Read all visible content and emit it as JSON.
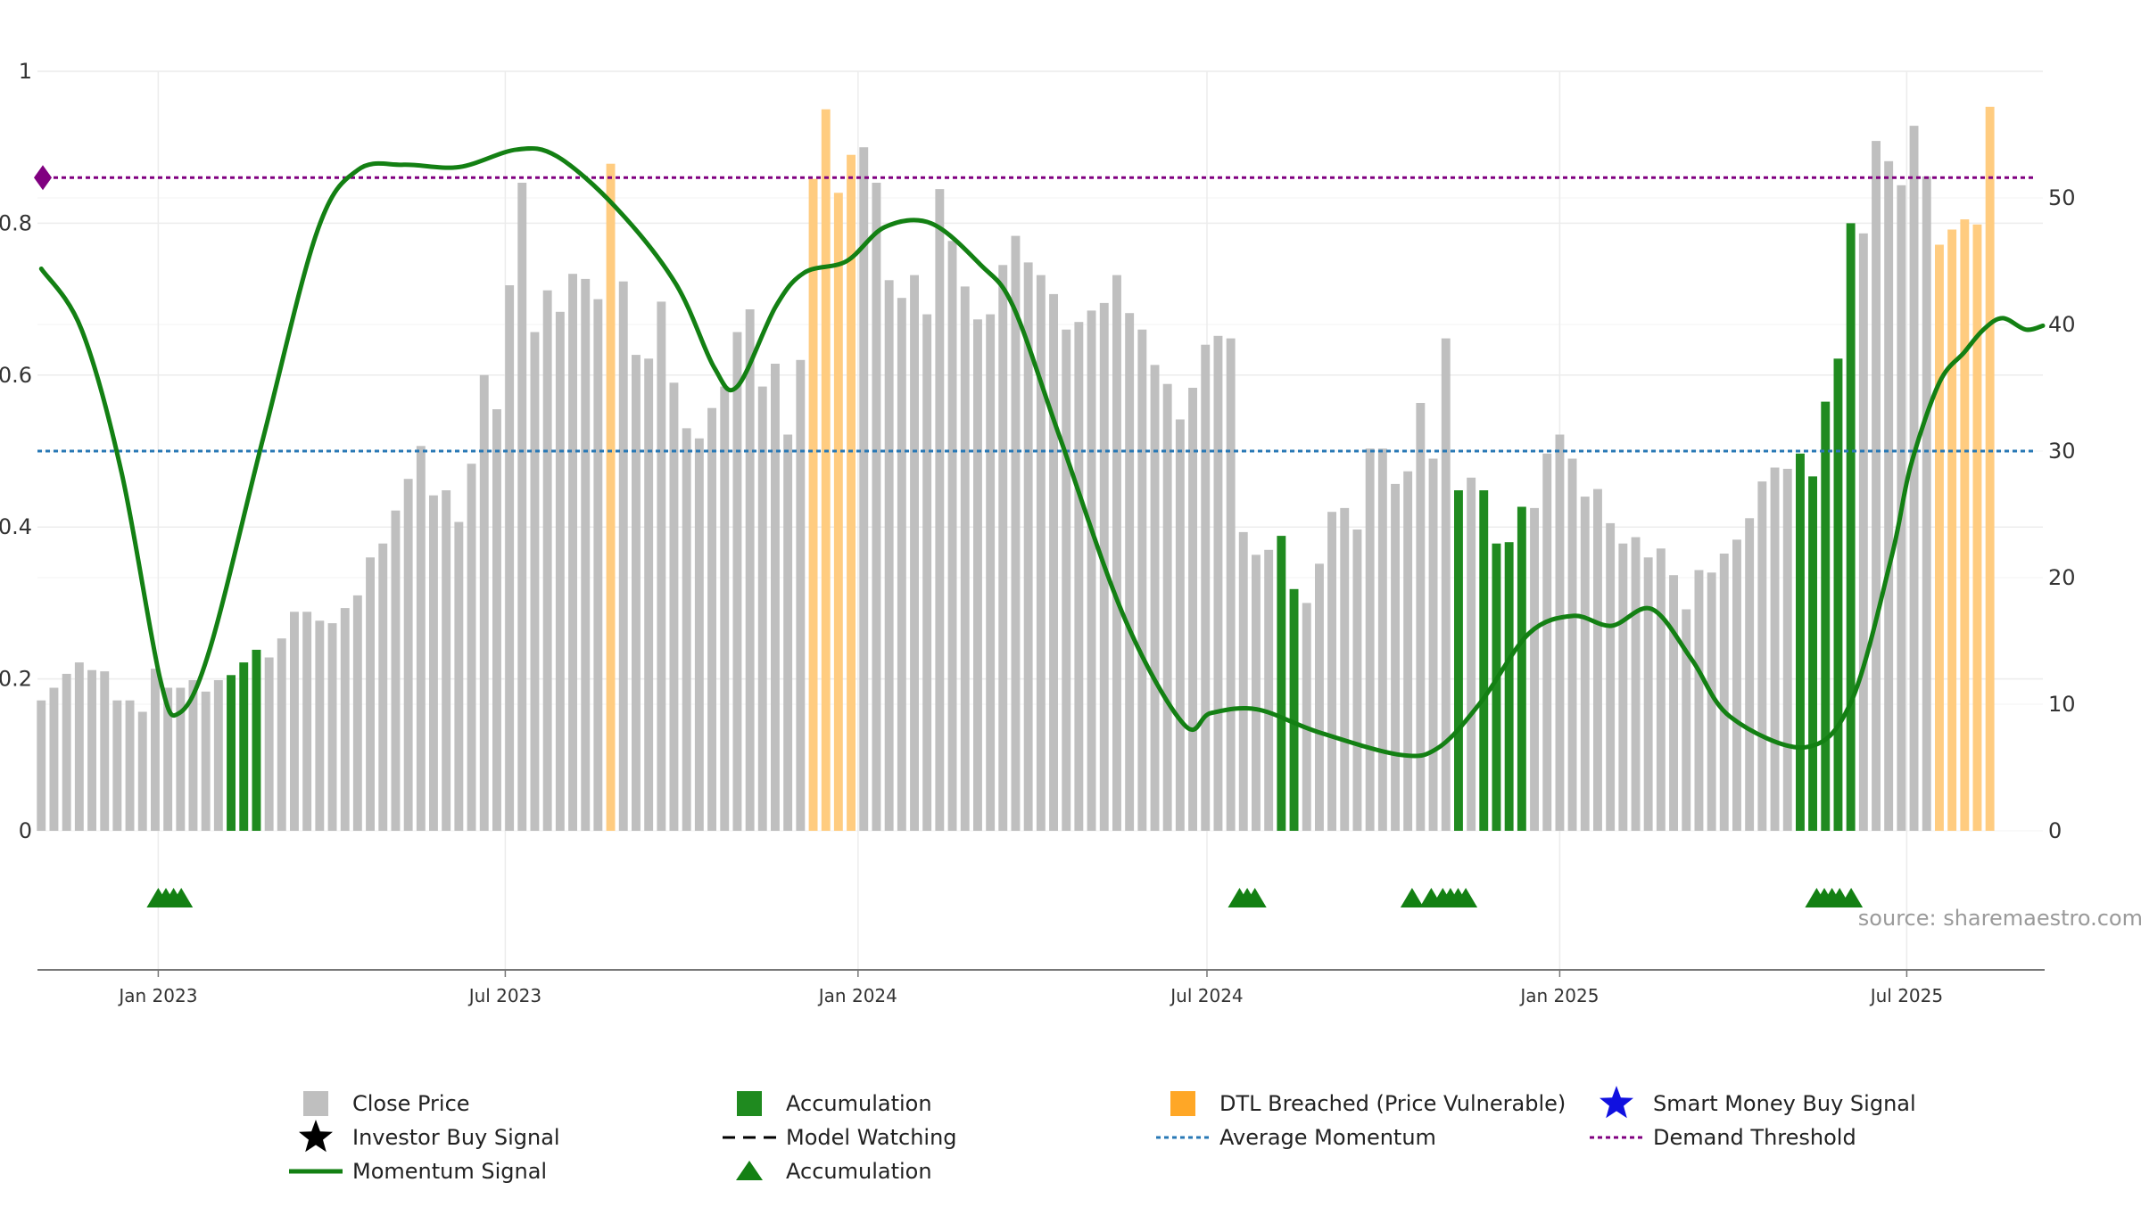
{
  "chart_data": {
    "type": "bar",
    "source_text": "source: sharemaestro.com",
    "left_axis": {
      "ylim": [
        0,
        1
      ],
      "ticks": [
        0,
        0.2,
        0.4,
        0.6,
        0.8,
        1
      ],
      "tick_labels": [
        "0",
        "0.2",
        "0.4",
        "0.6",
        "0.8",
        "1"
      ]
    },
    "right_axis": {
      "ylim": [
        0,
        60
      ],
      "ticks": [
        0,
        10,
        20,
        30,
        40,
        50
      ],
      "tick_labels": [
        "0",
        "10",
        "20",
        "30",
        "40",
        "50"
      ]
    },
    "x_axis": {
      "range": [
        "2022-10-30",
        "2025-09-10"
      ],
      "tick_dates": [
        "2023-01-01",
        "2023-07-01",
        "2024-01-01",
        "2024-07-01",
        "2025-01-01",
        "2025-07-01"
      ],
      "tick_labels": [
        "Jan 2023",
        "Jul 2023",
        "Jan 2024",
        "Jul 2024",
        "Jan 2025",
        "Jul 2025"
      ]
    },
    "grid": true,
    "bars": {
      "start_date": "2022-11-01",
      "interval_days": 6.6,
      "values": [
        10.3,
        11.3,
        12.4,
        13.3,
        12.7,
        12.6,
        10.3,
        10.3,
        9.4,
        12.8,
        11.3,
        11.3,
        11.9,
        11.0,
        11.9,
        12.3,
        13.3,
        14.3,
        13.7,
        15.2,
        17.3,
        17.3,
        16.6,
        16.4,
        17.6,
        18.6,
        21.6,
        22.7,
        25.3,
        27.8,
        30.4,
        26.5,
        26.9,
        24.4,
        29.0,
        36.0,
        33.3,
        43.1,
        51.2,
        39.4,
        42.7,
        41.0,
        44.0,
        43.6,
        42.0,
        52.7,
        43.4,
        37.6,
        37.3,
        41.8,
        35.4,
        31.8,
        31.0,
        33.4,
        35.1,
        39.4,
        41.2,
        35.1,
        36.9,
        31.3,
        37.2,
        51.5,
        57.0,
        50.4,
        53.4,
        54.0,
        51.2,
        43.5,
        42.1,
        43.9,
        40.8,
        50.7,
        46.6,
        43.0,
        40.4,
        40.8,
        44.7,
        47.0,
        44.9,
        43.9,
        42.4,
        39.6,
        40.2,
        41.1,
        41.7,
        43.9,
        40.9,
        39.6,
        36.8,
        35.3,
        32.5,
        35.0,
        38.4,
        39.1,
        38.9,
        23.6,
        21.8,
        22.2,
        23.3,
        19.1,
        18.0,
        21.1,
        25.2,
        25.5,
        23.8,
        30.2,
        30.2,
        27.4,
        28.4,
        33.8,
        29.4,
        38.9,
        26.9,
        27.9,
        26.9,
        22.7,
        22.8,
        25.6,
        25.5,
        29.8,
        31.3,
        29.4,
        26.4,
        27.0,
        24.3,
        22.7,
        23.2,
        21.6,
        22.3,
        20.2,
        17.5,
        20.6,
        20.4,
        21.9,
        23.0,
        24.7,
        27.6,
        28.7,
        28.6,
        29.8,
        28.0,
        33.9,
        37.3,
        48.0,
        47.2,
        54.5,
        52.9,
        51.0,
        55.7,
        51.7,
        46.3,
        47.5,
        48.3,
        47.9,
        57.2
      ],
      "series": [
        {
          "key": "close",
          "name": "Close Price",
          "color": "#bfbfbf"
        },
        {
          "key": "accum",
          "name": "Accumulation",
          "color": "#1f8a1f"
        },
        {
          "key": "dtl",
          "name": "DTL Breached (Price Vulnerable)",
          "color": "#ffcc80"
        }
      ],
      "accumulation_indices": [
        15,
        16,
        17,
        98,
        99,
        112,
        114,
        115,
        116,
        117,
        139,
        140,
        141,
        142,
        143
      ],
      "dtl_indices": [
        45,
        61,
        62,
        63,
        64,
        150,
        151,
        152,
        153,
        154,
        159
      ]
    },
    "momentum": {
      "name": "Momentum Signal",
      "color": "#138013",
      "points": [
        [
          "2022-11-01",
          0.74
        ],
        [
          "2022-11-22",
          0.66
        ],
        [
          "2022-12-13",
          0.47
        ],
        [
          "2023-01-02",
          0.2
        ],
        [
          "2023-01-12",
          0.155
        ],
        [
          "2023-01-28",
          0.24
        ],
        [
          "2023-02-25",
          0.52
        ],
        [
          "2023-03-25",
          0.79
        ],
        [
          "2023-04-15",
          0.87
        ],
        [
          "2023-05-09",
          0.877
        ],
        [
          "2023-06-07",
          0.874
        ],
        [
          "2023-07-07",
          0.897
        ],
        [
          "2023-07-28",
          0.888
        ],
        [
          "2023-08-28",
          0.82
        ],
        [
          "2023-09-28",
          0.72
        ],
        [
          "2023-10-18",
          0.61
        ],
        [
          "2023-10-30",
          0.585
        ],
        [
          "2023-11-19",
          0.69
        ],
        [
          "2023-12-04",
          0.735
        ],
        [
          "2023-12-26",
          0.75
        ],
        [
          "2024-01-15",
          0.795
        ],
        [
          "2024-02-08",
          0.8
        ],
        [
          "2024-03-05",
          0.745
        ],
        [
          "2024-03-22",
          0.69
        ],
        [
          "2024-04-15",
          0.52
        ],
        [
          "2024-05-19",
          0.28
        ],
        [
          "2024-06-19",
          0.14
        ],
        [
          "2024-07-03",
          0.155
        ],
        [
          "2024-07-27",
          0.16
        ],
        [
          "2024-08-28",
          0.13
        ],
        [
          "2024-10-10",
          0.1
        ],
        [
          "2024-10-30",
          0.11
        ],
        [
          "2024-11-21",
          0.17
        ],
        [
          "2024-12-16",
          0.26
        ],
        [
          "2025-01-08",
          0.283
        ],
        [
          "2025-01-28",
          0.27
        ],
        [
          "2025-02-18",
          0.292
        ],
        [
          "2025-03-11",
          0.225
        ],
        [
          "2025-03-31",
          0.15
        ],
        [
          "2025-05-09",
          0.11
        ],
        [
          "2025-06-02",
          0.17
        ],
        [
          "2025-06-23",
          0.36
        ],
        [
          "2025-07-03",
          0.48
        ],
        [
          "2025-07-18",
          0.59
        ],
        [
          "2025-07-31",
          0.63
        ],
        [
          "2025-08-10",
          0.66
        ],
        [
          "2025-08-20",
          0.675
        ],
        [
          "2025-09-01",
          0.66
        ],
        [
          "2025-09-10",
          0.665
        ]
      ]
    },
    "avg_momentum": {
      "name": "Average Momentum",
      "value": 0.5,
      "color": "#2878b5"
    },
    "demand_threshold": {
      "name": "Demand Threshold",
      "value": 0.86,
      "color": "#800080"
    },
    "markers": {
      "name": "Accumulation",
      "color": "#138013",
      "dates": [
        "2023-01-01",
        "2023-01-05",
        "2023-01-09",
        "2023-01-13",
        "2024-07-18",
        "2024-07-22",
        "2024-07-26",
        "2024-10-16",
        "2024-10-26",
        "2024-11-01",
        "2024-11-05",
        "2024-11-09",
        "2024-11-13",
        "2025-05-15",
        "2025-05-19",
        "2025-05-23",
        "2025-05-27",
        "2025-06-02"
      ]
    },
    "legend": {
      "placement": "bottom",
      "items": [
        {
          "key": "close",
          "label": "Close Price"
        },
        {
          "key": "accum",
          "label": "Accumulation"
        },
        {
          "key": "dtl",
          "label": "DTL Breached (Price Vulnerable)"
        },
        {
          "key": "smart",
          "label": "Smart Money Buy Signal"
        },
        {
          "key": "investor",
          "label": "Investor Buy Signal"
        },
        {
          "key": "watching",
          "label": "Model Watching"
        },
        {
          "key": "avg",
          "label": "Average Momentum"
        },
        {
          "key": "demand",
          "label": "Demand Threshold"
        },
        {
          "key": "momentum",
          "label": "Momentum Signal"
        },
        {
          "key": "triangle",
          "label": "Accumulation"
        }
      ]
    }
  }
}
